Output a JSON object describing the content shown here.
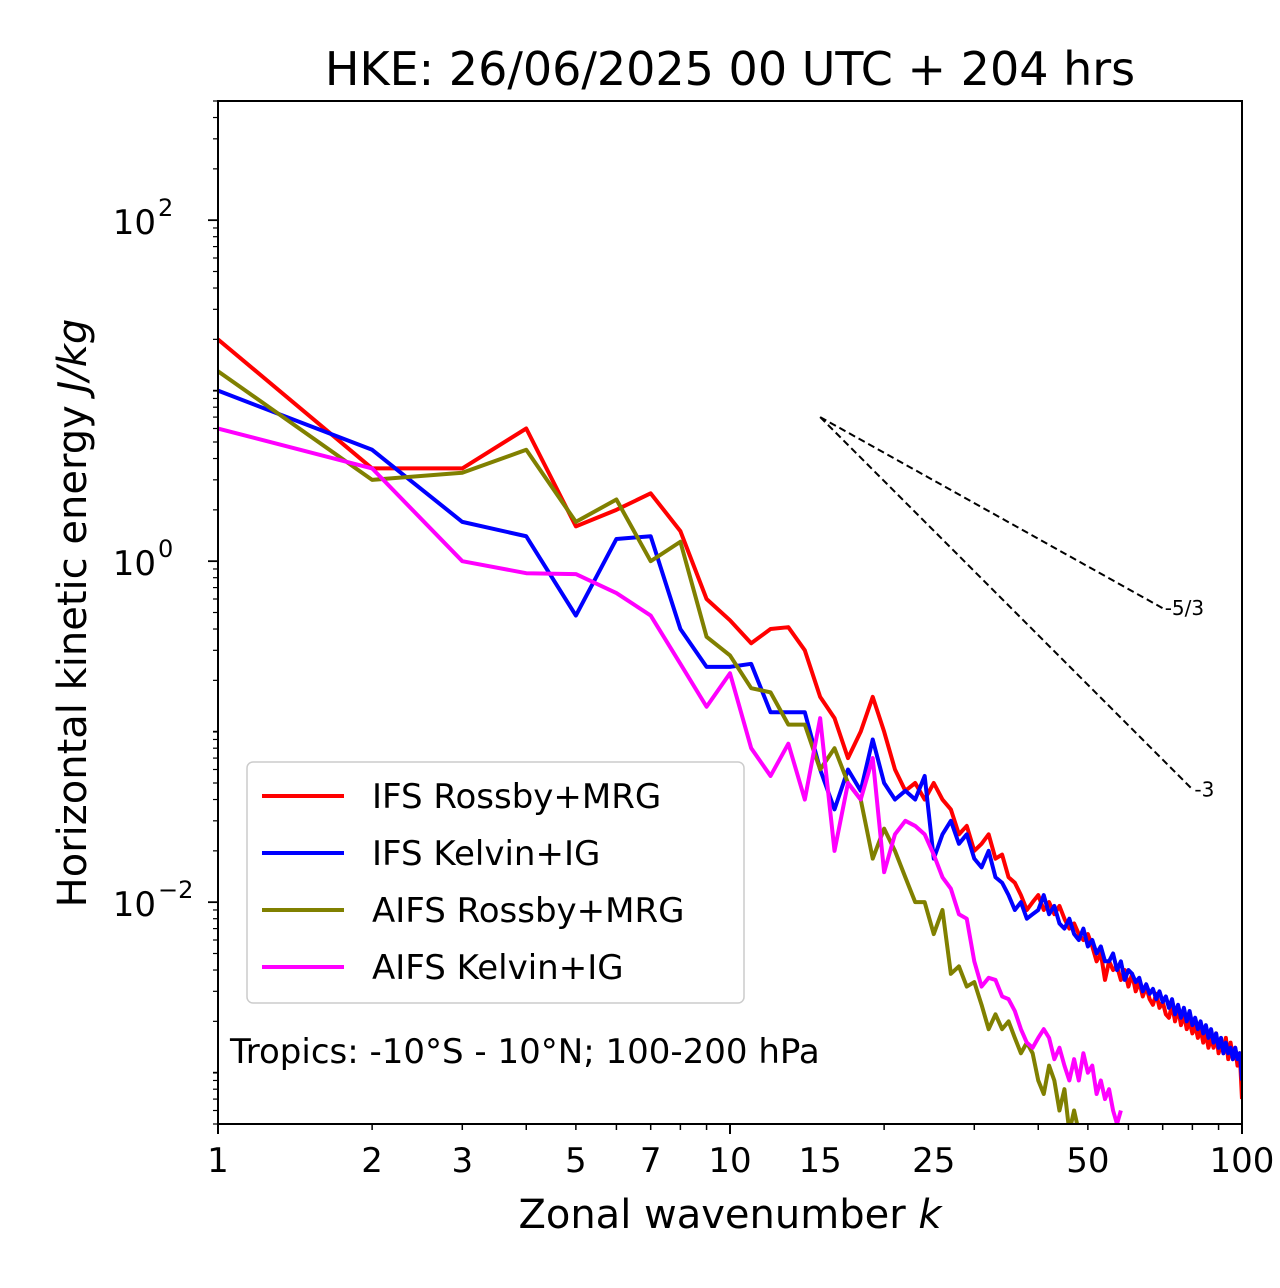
{
  "chart_data": {
    "type": "line",
    "title": "HKE: 26/06/2025 00 UTC + 204 hrs",
    "xlabel": "Zonal wavenumber",
    "xlabel_var": "k",
    "ylabel": "Horizontal kinetic energy",
    "ylabel_unit": "J/kg",
    "xscale": "log",
    "yscale": "log",
    "xlim": [
      1,
      100
    ],
    "ylim": [
      0.0005,
      500
    ],
    "x_ticks": [
      1,
      2,
      3,
      5,
      7,
      10,
      15,
      25,
      50,
      100
    ],
    "x_tick_labels": [
      "1",
      "2",
      "3",
      "5",
      "7",
      "10",
      "15",
      "25",
      "50",
      "100"
    ],
    "y_ticks": [
      0.01,
      1,
      100
    ],
    "y_tick_labels": [
      {
        "base": "10",
        "exp": "−2"
      },
      {
        "base": "10",
        "exp": "0"
      },
      {
        "base": "10",
        "exp": "2"
      }
    ],
    "grid": false,
    "legend_position": "lower-left",
    "annotation": "Tropics: -10°S - 10°N; 100-200 hPa",
    "reference_lines": [
      {
        "label": "-5/3",
        "x0": 15,
        "y0": 7.0,
        "x1": 70,
        "y1": 0.53
      },
      {
        "label": "-3",
        "x0": 15,
        "y0": 7.0,
        "x1": 80,
        "y1": 0.0459
      }
    ],
    "series": [
      {
        "name": "IFS Rossby+MRG",
        "color": "#ff0000",
        "x": [
          1,
          2,
          3,
          4,
          5,
          6,
          7,
          8,
          9,
          10,
          11,
          12,
          13,
          14,
          15,
          16,
          17,
          18,
          19,
          20,
          21,
          22,
          23,
          24,
          25,
          26,
          27,
          28,
          29,
          30,
          31,
          32,
          33,
          34,
          35,
          36,
          37,
          38,
          39,
          40,
          41,
          42,
          43,
          44,
          45,
          46,
          47,
          48,
          49,
          50,
          51,
          52,
          53,
          54,
          55,
          56,
          57,
          58,
          59,
          60,
          61,
          62,
          63,
          64,
          65,
          66,
          67,
          68,
          69,
          70,
          71,
          72,
          73,
          74,
          75,
          76,
          77,
          78,
          79,
          80,
          81,
          82,
          83,
          84,
          85,
          86,
          87,
          88,
          89,
          90,
          91,
          92,
          93,
          94,
          95,
          96,
          97,
          98,
          99,
          100
        ],
        "y": [
          20,
          3.5,
          3.5,
          6.0,
          1.6,
          2.0,
          2.5,
          1.5,
          0.6,
          0.45,
          0.33,
          0.4,
          0.41,
          0.3,
          0.16,
          0.12,
          0.07,
          0.1,
          0.16,
          0.1,
          0.06,
          0.045,
          0.05,
          0.04,
          0.05,
          0.04,
          0.035,
          0.025,
          0.028,
          0.02,
          0.022,
          0.025,
          0.018,
          0.019,
          0.014,
          0.013,
          0.011,
          0.009,
          0.01,
          0.011,
          0.009,
          0.01,
          0.0085,
          0.0095,
          0.008,
          0.007,
          0.0075,
          0.0065,
          0.006,
          0.0065,
          0.0055,
          0.0045,
          0.005,
          0.0035,
          0.0045,
          0.004,
          0.0042,
          0.0035,
          0.004,
          0.0032,
          0.0038,
          0.003,
          0.0034,
          0.0028,
          0.0032,
          0.0027,
          0.0025,
          0.0029,
          0.0024,
          0.0026,
          0.0022,
          0.0021,
          0.0025,
          0.002,
          0.0024,
          0.0019,
          0.0022,
          0.0018,
          0.002,
          0.0017,
          0.0019,
          0.0016,
          0.0018,
          0.0015,
          0.0017,
          0.0014,
          0.0016,
          0.0014,
          0.0017,
          0.0013,
          0.0015,
          0.0013,
          0.0016,
          0.0012,
          0.0015,
          0.0012,
          0.0014,
          0.0011,
          0.0013,
          0.0007
        ]
      },
      {
        "name": "IFS Kelvin+IG",
        "color": "#0000ff",
        "x": [
          1,
          2,
          3,
          4,
          5,
          6,
          7,
          8,
          9,
          10,
          11,
          12,
          13,
          14,
          15,
          16,
          17,
          18,
          19,
          20,
          21,
          22,
          23,
          24,
          25,
          26,
          27,
          28,
          29,
          30,
          31,
          32,
          33,
          34,
          35,
          36,
          37,
          38,
          39,
          40,
          41,
          42,
          43,
          44,
          45,
          46,
          47,
          48,
          49,
          50,
          51,
          52,
          53,
          54,
          55,
          56,
          57,
          58,
          59,
          60,
          61,
          62,
          63,
          64,
          65,
          66,
          67,
          68,
          69,
          70,
          71,
          72,
          73,
          74,
          75,
          76,
          77,
          78,
          79,
          80,
          81,
          82,
          83,
          84,
          85,
          86,
          87,
          88,
          89,
          90,
          91,
          92,
          93,
          94,
          95,
          96,
          97,
          98,
          99,
          100
        ],
        "y": [
          10,
          4.5,
          1.7,
          1.4,
          0.48,
          1.35,
          1.4,
          0.4,
          0.24,
          0.24,
          0.25,
          0.13,
          0.13,
          0.13,
          0.06,
          0.035,
          0.06,
          0.045,
          0.09,
          0.05,
          0.04,
          0.045,
          0.04,
          0.055,
          0.018,
          0.025,
          0.03,
          0.022,
          0.025,
          0.018,
          0.016,
          0.02,
          0.014,
          0.013,
          0.011,
          0.009,
          0.01,
          0.008,
          0.0085,
          0.009,
          0.011,
          0.0085,
          0.0095,
          0.0075,
          0.007,
          0.008,
          0.0065,
          0.006,
          0.007,
          0.0055,
          0.006,
          0.005,
          0.0055,
          0.0045,
          0.0045,
          0.005,
          0.004,
          0.0045,
          0.0035,
          0.004,
          0.0038,
          0.0034,
          0.0036,
          0.003,
          0.0033,
          0.0029,
          0.0031,
          0.0027,
          0.003,
          0.0026,
          0.0028,
          0.0024,
          0.0027,
          0.0022,
          0.0025,
          0.0021,
          0.0024,
          0.002,
          0.0023,
          0.0019,
          0.0021,
          0.0018,
          0.002,
          0.0017,
          0.0019,
          0.0016,
          0.0018,
          0.0015,
          0.0017,
          0.0014,
          0.0016,
          0.0013,
          0.0015,
          0.0013,
          0.0014,
          0.0012,
          0.0014,
          0.0012,
          0.0013,
          0.0009
        ]
      },
      {
        "name": "AIFS Rossby+MRG",
        "color": "#808000",
        "x": [
          1,
          2,
          3,
          4,
          5,
          6,
          7,
          8,
          9,
          10,
          11,
          12,
          13,
          14,
          15,
          16,
          17,
          18,
          19,
          20,
          21,
          22,
          23,
          24,
          25,
          26,
          27,
          28,
          29,
          30,
          31,
          32,
          33,
          34,
          35,
          36,
          37,
          38,
          39,
          40,
          41,
          42,
          43,
          44,
          45,
          46,
          47,
          48
        ],
        "y": [
          13,
          3.0,
          3.3,
          4.5,
          1.7,
          2.3,
          1.0,
          1.3,
          0.36,
          0.28,
          0.18,
          0.17,
          0.11,
          0.11,
          0.06,
          0.08,
          0.05,
          0.04,
          0.018,
          0.027,
          0.02,
          0.014,
          0.01,
          0.01,
          0.0065,
          0.009,
          0.0038,
          0.0042,
          0.0032,
          0.0034,
          0.0025,
          0.0018,
          0.0022,
          0.0018,
          0.002,
          0.0016,
          0.0013,
          0.0015,
          0.0013,
          0.0009,
          0.00075,
          0.0011,
          0.0009,
          0.0006,
          0.0008,
          0.00045,
          0.0006,
          0.00045
        ]
      },
      {
        "name": "AIFS Kelvin+IG",
        "color": "#ff00ff",
        "x": [
          1,
          2,
          3,
          4,
          5,
          6,
          7,
          8,
          9,
          10,
          11,
          12,
          13,
          14,
          15,
          16,
          17,
          18,
          19,
          20,
          21,
          22,
          23,
          24,
          25,
          26,
          27,
          28,
          29,
          30,
          31,
          32,
          33,
          34,
          35,
          36,
          37,
          38,
          39,
          40,
          41,
          42,
          43,
          44,
          45,
          46,
          47,
          48,
          49,
          50,
          51,
          52,
          53,
          54,
          55,
          56,
          57,
          58
        ],
        "y": [
          6.0,
          3.5,
          1.0,
          0.85,
          0.84,
          0.65,
          0.48,
          0.25,
          0.14,
          0.22,
          0.08,
          0.055,
          0.085,
          0.04,
          0.12,
          0.02,
          0.05,
          0.04,
          0.07,
          0.015,
          0.025,
          0.03,
          0.028,
          0.025,
          0.019,
          0.014,
          0.012,
          0.0085,
          0.008,
          0.0045,
          0.0032,
          0.0036,
          0.0035,
          0.0028,
          0.0027,
          0.0023,
          0.0018,
          0.0015,
          0.0014,
          0.0016,
          0.0018,
          0.0016,
          0.0012,
          0.0014,
          0.0011,
          0.0009,
          0.0012,
          0.0009,
          0.0013,
          0.001,
          0.0011,
          0.00075,
          0.0009,
          0.0007,
          0.0008,
          0.0006,
          0.0005,
          0.0006
        ]
      }
    ]
  }
}
